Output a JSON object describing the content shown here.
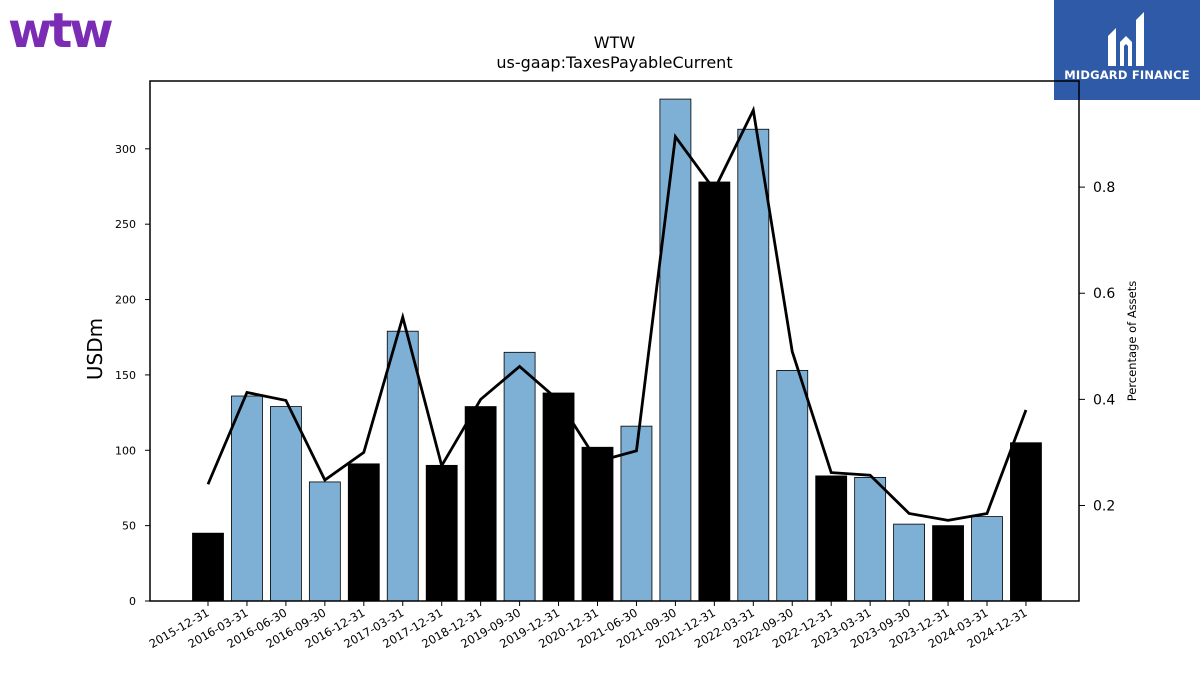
{
  "header": {
    "company_logo_text": "wtw",
    "brand_badge_text": "MIDGARD FINANCE",
    "brand_color": "#7b2cb5",
    "badge_color": "#2f5aa8"
  },
  "chart_data": {
    "type": "bar",
    "title": "WTW",
    "subtitle": "us-gaap:TaxesPayableCurrent",
    "ylabel": "USDm",
    "y2label": "Percentage of Assets",
    "ylim": [
      0,
      345
    ],
    "y2lim": [
      0.02,
      1.0
    ],
    "yticks": [
      0,
      50,
      100,
      150,
      200,
      250,
      300
    ],
    "y2ticks": [
      0.2,
      0.4,
      0.6,
      0.8
    ],
    "y2tick_labels": [
      "0.2",
      "0.4",
      "0.6",
      "0.8"
    ],
    "categories": [
      "2015-12-31",
      "2016-03-31",
      "2016-06-30",
      "2016-09-30",
      "2016-12-31",
      "2017-03-31",
      "2017-12-31",
      "2018-12-31",
      "2019-09-30",
      "2019-12-31",
      "2020-12-31",
      "2021-06-30",
      "2021-09-30",
      "2021-12-31",
      "2022-03-31",
      "2022-09-30",
      "2022-12-31",
      "2023-03-31",
      "2023-09-30",
      "2023-12-31",
      "2024-03-31",
      "2024-12-31"
    ],
    "series": [
      {
        "values": [
          45,
          136,
          129,
          79,
          91,
          179,
          90,
          129,
          165,
          138,
          102,
          116,
          333,
          278,
          313,
          153,
          83,
          82,
          51,
          50,
          56,
          105
        ],
        "period_type": [
          "annual",
          "quarter",
          "quarter",
          "quarter",
          "annual",
          "quarter",
          "annual",
          "annual",
          "quarter",
          "annual",
          "annual",
          "quarter",
          "quarter",
          "annual",
          "quarter",
          "quarter",
          "annual",
          "quarter",
          "quarter",
          "annual",
          "quarter",
          "annual"
        ]
      },
      {
        "type": "line",
        "axis": "right",
        "values": [
          0.24,
          0.413,
          0.398,
          0.248,
          0.3,
          0.555,
          0.275,
          0.4,
          0.462,
          0.398,
          0.283,
          0.303,
          0.895,
          0.795,
          0.945,
          0.49,
          0.262,
          0.257,
          0.185,
          0.172,
          0.185,
          0.38
        ]
      }
    ],
    "colors": {
      "annual": "#000000",
      "quarter": "#7eb0d5",
      "line": "#000000"
    },
    "grid": false
  }
}
